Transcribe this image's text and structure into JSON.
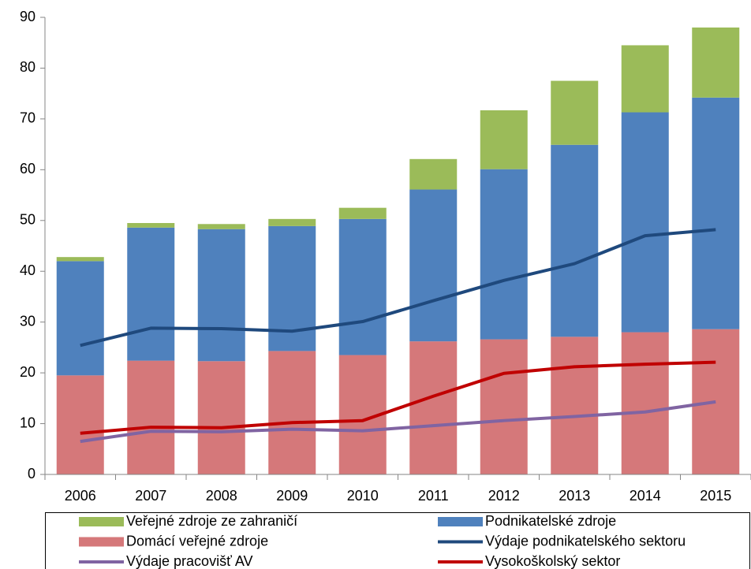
{
  "chart_data": {
    "type": "bar",
    "stacked": true,
    "categories": [
      "2006",
      "2007",
      "2008",
      "2009",
      "2010",
      "2011",
      "2012",
      "2013",
      "2014",
      "2015"
    ],
    "series": [
      {
        "name": "Domácí veřejné zdroje",
        "type": "bar",
        "color": "#d5787a",
        "values": [
          19.5,
          22.4,
          22.3,
          24.3,
          23.5,
          26.2,
          26.6,
          27.1,
          28.0,
          28.6
        ]
      },
      {
        "name": "Podnikatelské zdroje",
        "type": "bar",
        "color": "#4f81bd",
        "values": [
          22.5,
          26.2,
          26.0,
          24.6,
          26.8,
          29.9,
          33.5,
          37.8,
          43.3,
          45.6
        ]
      },
      {
        "name": "Veřejné zdroje ze zahraničí",
        "type": "bar",
        "color": "#9bbb59",
        "values": [
          0.8,
          0.9,
          1.0,
          1.4,
          2.2,
          6.0,
          11.6,
          12.6,
          13.2,
          13.8
        ]
      },
      {
        "name": "Výdaje podnikatelského sektoru",
        "type": "line",
        "color": "#1f497d",
        "values": [
          25.4,
          28.8,
          28.7,
          28.2,
          30.1,
          34.2,
          38.2,
          41.5,
          47.0,
          48.2
        ]
      },
      {
        "name": "Výdaje pracovišť AV",
        "type": "line",
        "color": "#8064a2",
        "values": [
          6.5,
          8.5,
          8.4,
          8.9,
          8.6,
          9.6,
          10.6,
          11.4,
          12.3,
          14.3
        ]
      },
      {
        "name": "Vysokoškolský sektor",
        "type": "line",
        "color": "#c00000",
        "values": [
          8.1,
          9.3,
          9.2,
          10.2,
          10.6,
          15.4,
          19.9,
          21.2,
          21.7,
          22.1
        ]
      }
    ],
    "ylim": [
      0,
      90
    ],
    "yticks": [
      0,
      10,
      20,
      30,
      40,
      50,
      60,
      70,
      80,
      90
    ],
    "grid": false,
    "legend": "bottom"
  }
}
